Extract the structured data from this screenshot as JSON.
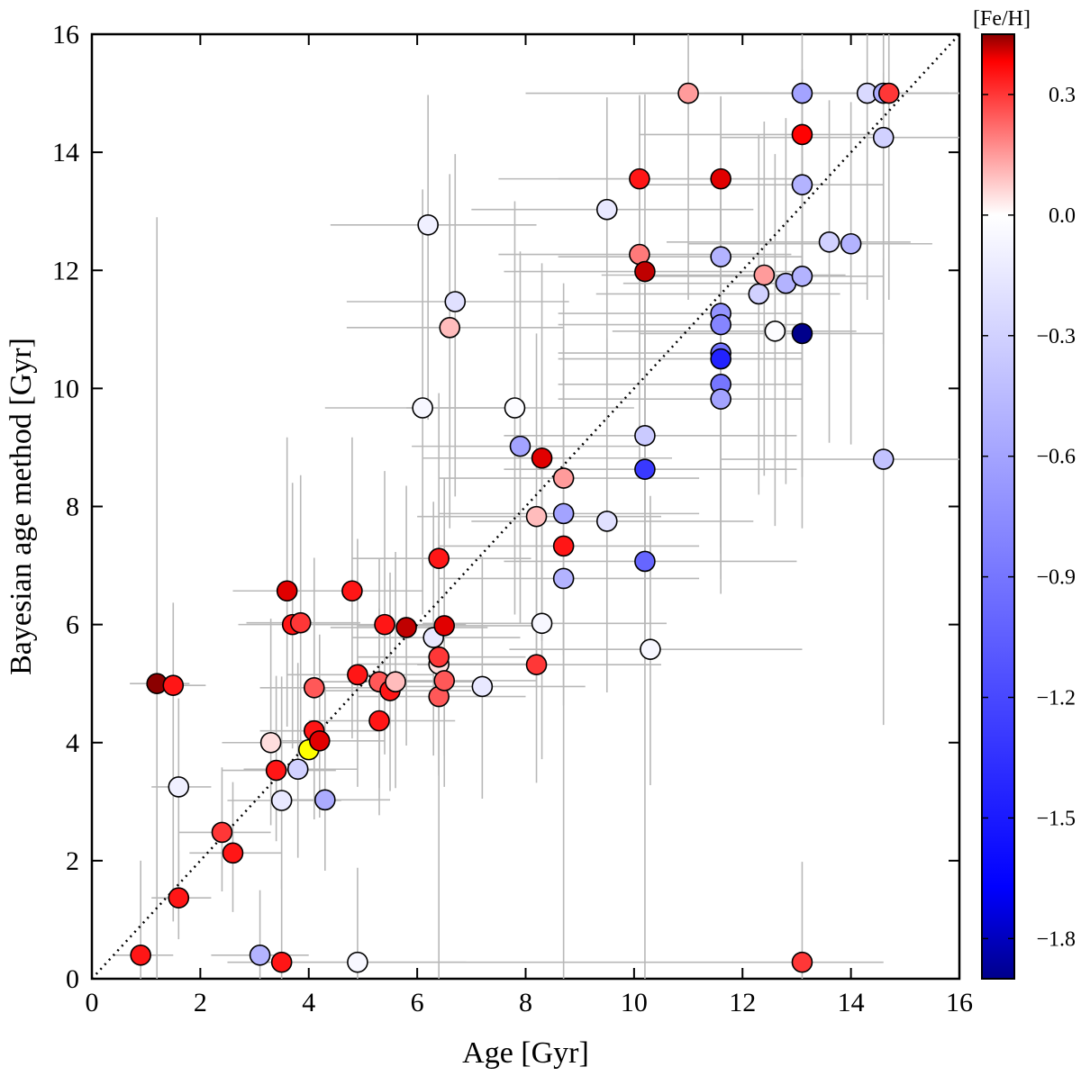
{
  "chart_data": {
    "type": "scatter",
    "title": "",
    "xlabel": "Age [Gyr]",
    "ylabel": "Bayesian age method [Gyr]",
    "xlim": [
      0,
      16
    ],
    "ylim": [
      0,
      16
    ],
    "xticks": [
      0,
      2,
      4,
      6,
      8,
      10,
      12,
      14,
      16
    ],
    "yticks": [
      0,
      2,
      4,
      6,
      8,
      10,
      12,
      14,
      16
    ],
    "reference_line": {
      "style": "dotted",
      "from": [
        0,
        0
      ],
      "to": [
        16,
        16
      ]
    },
    "colorbar": {
      "label": "[Fe/H]",
      "range": [
        -1.9,
        0.45
      ],
      "ticks": [
        0.3,
        0.0,
        -0.3,
        -0.6,
        -0.9,
        -1.2,
        -1.5,
        -1.8
      ],
      "tick_labels": [
        "0.3",
        "0.0",
        "−0.3",
        "−0.6",
        "−0.9",
        "−1.2",
        "−1.5",
        "−1.8"
      ],
      "colors": {
        "low": "#00008b",
        "mid_low": "#0000ff",
        "mid": "#ffffff",
        "mid_high": "#ff0000",
        "high": "#8b0000"
      }
    },
    "highlight_color": "#ffff00",
    "points": [
      {
        "x": 0.9,
        "y": 0.4,
        "feh": 0.35,
        "xerr": [
          0.5,
          0.6
        ],
        "yerr": [
          0.4,
          1.6
        ]
      },
      {
        "x": 1.2,
        "y": 5.0,
        "feh": 0.45,
        "xerr": [
          0.5,
          0.6
        ],
        "yerr": [
          5.0,
          7.9
        ]
      },
      {
        "x": 1.5,
        "y": 4.97,
        "feh": 0.35,
        "xerr": [
          0.5,
          0.6
        ],
        "yerr": [
          4.0,
          1.4
        ]
      },
      {
        "x": 1.6,
        "y": 3.25,
        "feh": -0.1,
        "xerr": [
          0.5,
          0.6
        ],
        "yerr": [
          1.8,
          1.5
        ]
      },
      {
        "x": 1.6,
        "y": 1.37,
        "feh": 0.35,
        "xerr": [
          0.5,
          0.6
        ],
        "yerr": [
          0.7,
          0.8
        ]
      },
      {
        "x": 2.4,
        "y": 2.48,
        "feh": 0.3,
        "xerr": [
          0.8,
          0.9
        ],
        "yerr": [
          1.0,
          1.1
        ]
      },
      {
        "x": 2.6,
        "y": 2.13,
        "feh": 0.35,
        "xerr": [
          0.8,
          0.9
        ],
        "yerr": [
          1.0,
          1.2
        ]
      },
      {
        "x": 3.1,
        "y": 0.4,
        "feh": -0.5,
        "xerr": [
          0.9,
          0.9
        ],
        "yerr": [
          0.4,
          1.1
        ]
      },
      {
        "x": 3.3,
        "y": 4.0,
        "feh": 0.05,
        "xerr": [
          0.9,
          1.0
        ],
        "yerr": [
          1.4,
          2.1
        ]
      },
      {
        "x": 3.4,
        "y": 3.53,
        "feh": 0.35,
        "xerr": [
          1.0,
          1.1
        ],
        "yerr": [
          1.2,
          1.6
        ]
      },
      {
        "x": 3.5,
        "y": 0.28,
        "feh": 0.35,
        "xerr": [
          1.0,
          1.5
        ],
        "yerr": [
          0.28,
          1.4
        ]
      },
      {
        "x": 3.5,
        "y": 3.02,
        "feh": -0.15,
        "xerr": [
          1.0,
          1.1
        ],
        "yerr": [
          1.5,
          2.1
        ]
      },
      {
        "x": 3.6,
        "y": 6.57,
        "feh": 0.4,
        "xerr": [
          1.0,
          1.1
        ],
        "yerr": [
          2.3,
          2.6
        ]
      },
      {
        "x": 3.7,
        "y": 6.0,
        "feh": 0.35,
        "xerr": [
          1.0,
          1.2
        ],
        "yerr": [
          2.1,
          2.4
        ]
      },
      {
        "x": 3.8,
        "y": 3.55,
        "feh": -0.3,
        "xerr": [
          1.0,
          1.1
        ],
        "yerr": [
          1.5,
          1.8
        ]
      },
      {
        "x": 3.85,
        "y": 6.03,
        "feh": 0.3,
        "xerr": [
          1.0,
          1.1
        ],
        "yerr": [
          2.2,
          2.5
        ]
      },
      {
        "x": 4.0,
        "y": 3.88,
        "feh": 0.0,
        "highlight": true,
        "xerr": [
          0,
          0
        ],
        "yerr": [
          0,
          0
        ]
      },
      {
        "x": 4.1,
        "y": 4.93,
        "feh": 0.25,
        "xerr": [
          1.0,
          1.2
        ],
        "yerr": [
          1.8,
          2.2
        ]
      },
      {
        "x": 4.1,
        "y": 4.2,
        "feh": 0.35,
        "xerr": [
          1.0,
          1.2
        ],
        "yerr": [
          1.5,
          1.9
        ]
      },
      {
        "x": 4.2,
        "y": 4.03,
        "feh": 0.4,
        "xerr": [
          1.0,
          1.2
        ],
        "yerr": [
          1.3,
          1.8
        ]
      },
      {
        "x": 4.3,
        "y": 3.03,
        "feh": -0.55,
        "xerr": [
          1.0,
          1.2
        ],
        "yerr": [
          1.2,
          1.9
        ]
      },
      {
        "x": 4.8,
        "y": 6.57,
        "feh": 0.35,
        "xerr": [
          1.2,
          1.3
        ],
        "yerr": [
          2.5,
          2.6
        ]
      },
      {
        "x": 4.9,
        "y": 0.28,
        "feh": -0.05,
        "xerr": [
          1.5,
          2.0
        ],
        "yerr": [
          0.28,
          1.6
        ]
      },
      {
        "x": 4.9,
        "y": 5.15,
        "feh": 0.35,
        "xerr": [
          1.3,
          1.4
        ],
        "yerr": [
          1.9,
          2.3
        ]
      },
      {
        "x": 5.3,
        "y": 5.03,
        "feh": 0.25,
        "xerr": [
          1.3,
          1.4
        ],
        "yerr": [
          1.8,
          2.1
        ]
      },
      {
        "x": 5.3,
        "y": 4.37,
        "feh": 0.35,
        "xerr": [
          1.3,
          1.4
        ],
        "yerr": [
          1.6,
          1.9
        ]
      },
      {
        "x": 5.4,
        "y": 6.0,
        "feh": 0.35,
        "xerr": [
          1.3,
          1.5
        ],
        "yerr": [
          2.2,
          2.6
        ]
      },
      {
        "x": 5.5,
        "y": 4.88,
        "feh": 0.35,
        "xerr": [
          1.3,
          1.5
        ],
        "yerr": [
          1.7,
          2.0
        ]
      },
      {
        "x": 5.6,
        "y": 5.03,
        "feh": 0.1,
        "xerr": [
          1.4,
          1.5
        ],
        "yerr": [
          1.8,
          2.2
        ]
      },
      {
        "x": 5.8,
        "y": 5.95,
        "feh": 0.42,
        "xerr": [
          1.4,
          1.5
        ],
        "yerr": [
          2.0,
          2.4
        ]
      },
      {
        "x": 6.1,
        "y": 9.67,
        "feh": -0.05,
        "xerr": [
          1.8,
          1.9
        ],
        "yerr": [
          3.5,
          3.7
        ]
      },
      {
        "x": 6.2,
        "y": 12.77,
        "feh": -0.1,
        "xerr": [
          1.8,
          2.0
        ],
        "yerr": [
          3.3,
          2.2
        ]
      },
      {
        "x": 6.3,
        "y": 5.78,
        "feh": -0.15,
        "xerr": [
          1.5,
          1.6
        ],
        "yerr": [
          2.0,
          2.3
        ]
      },
      {
        "x": 6.4,
        "y": 5.33,
        "feh": 0.05,
        "xerr": [
          1.5,
          1.6
        ],
        "yerr": [
          1.9,
          2.2
        ]
      },
      {
        "x": 6.4,
        "y": 7.12,
        "feh": 0.35,
        "xerr": [
          1.6,
          1.7
        ],
        "yerr": [
          2.7,
          2.8
        ]
      },
      {
        "x": 6.4,
        "y": 5.45,
        "feh": 0.3,
        "xerr": [
          1.5,
          1.6
        ],
        "yerr": [
          2.0,
          2.3
        ]
      },
      {
        "x": 6.4,
        "y": 4.78,
        "feh": 0.25,
        "xerr": [
          1.5,
          1.6
        ],
        "yerr": [
          4.78,
          1.9
        ]
      },
      {
        "x": 6.5,
        "y": 5.98,
        "feh": 0.4,
        "xerr": [
          1.6,
          1.7
        ],
        "yerr": [
          2.2,
          2.5
        ]
      },
      {
        "x": 6.5,
        "y": 5.05,
        "feh": 0.25,
        "xerr": [
          1.6,
          1.7
        ],
        "yerr": [
          1.8,
          2.1
        ]
      },
      {
        "x": 6.6,
        "y": 11.03,
        "feh": 0.1,
        "xerr": [
          1.9,
          2.1
        ],
        "yerr": [
          3.4,
          2.6
        ]
      },
      {
        "x": 6.7,
        "y": 11.47,
        "feh": -0.2,
        "xerr": [
          2.0,
          2.1
        ],
        "yerr": [
          3.3,
          2.5
        ]
      },
      {
        "x": 7.2,
        "y": 4.95,
        "feh": -0.15,
        "xerr": [
          1.8,
          1.9
        ],
        "yerr": [
          1.9,
          2.2
        ]
      },
      {
        "x": 7.8,
        "y": 9.67,
        "feh": -0.02,
        "xerr": [
          2.0,
          2.2
        ],
        "yerr": [
          3.5,
          3.5
        ]
      },
      {
        "x": 7.9,
        "y": 9.02,
        "feh": -0.6,
        "xerr": [
          2.0,
          2.2
        ],
        "yerr": [
          3.0,
          3.3
        ]
      },
      {
        "x": 8.2,
        "y": 7.83,
        "feh": 0.1,
        "xerr": [
          2.2,
          2.3
        ],
        "yerr": [
          2.9,
          3.1
        ]
      },
      {
        "x": 8.2,
        "y": 5.32,
        "feh": 0.3,
        "xerr": [
          2.2,
          2.3
        ],
        "yerr": [
          2.0,
          2.3
        ]
      },
      {
        "x": 8.3,
        "y": 8.82,
        "feh": 0.4,
        "xerr": [
          2.2,
          2.4
        ],
        "yerr": [
          3.1,
          3.3
        ]
      },
      {
        "x": 8.3,
        "y": 6.02,
        "feh": -0.05,
        "xerr": [
          2.2,
          2.3
        ],
        "yerr": [
          2.3,
          2.6
        ]
      },
      {
        "x": 8.7,
        "y": 8.48,
        "feh": 0.15,
        "xerr": [
          2.3,
          2.5
        ],
        "yerr": [
          3.0,
          3.3
        ]
      },
      {
        "x": 8.7,
        "y": 7.88,
        "feh": -0.6,
        "xerr": [
          2.3,
          2.5
        ],
        "yerr": [
          2.9,
          3.1
        ]
      },
      {
        "x": 8.7,
        "y": 7.33,
        "feh": 0.35,
        "xerr": [
          2.3,
          2.5
        ],
        "yerr": [
          2.7,
          3.0
        ]
      },
      {
        "x": 8.7,
        "y": 6.78,
        "feh": -0.5,
        "xerr": [
          2.3,
          2.5
        ],
        "yerr": [
          6.78,
          2.8
        ]
      },
      {
        "x": 9.5,
        "y": 13.03,
        "feh": -0.15,
        "xerr": [
          2.5,
          2.7
        ],
        "yerr": [
          3.3,
          1.9
        ]
      },
      {
        "x": 9.5,
        "y": 7.75,
        "feh": -0.2,
        "xerr": [
          2.5,
          2.7
        ],
        "yerr": [
          2.9,
          3.1
        ]
      },
      {
        "x": 10.1,
        "y": 13.55,
        "feh": 0.35,
        "xerr": [
          2.6,
          2.8
        ],
        "yerr": [
          3.3,
          1.4
        ]
      },
      {
        "x": 10.1,
        "y": 12.27,
        "feh": 0.2,
        "xerr": [
          2.6,
          2.8
        ],
        "yerr": [
          3.5,
          2.7
        ]
      },
      {
        "x": 10.2,
        "y": 11.98,
        "feh": 0.42,
        "xerr": [
          2.6,
          2.8
        ],
        "yerr": [
          3.4,
          3.0
        ]
      },
      {
        "x": 10.2,
        "y": 9.2,
        "feh": -0.35,
        "xerr": [
          2.6,
          2.8
        ],
        "yerr": [
          3.2,
          3.3
        ]
      },
      {
        "x": 10.2,
        "y": 8.63,
        "feh": -1.3,
        "xerr": [
          2.6,
          2.8
        ],
        "yerr": [
          3.0,
          3.2
        ]
      },
      {
        "x": 10.2,
        "y": 7.07,
        "feh": -1.0,
        "xerr": [
          2.6,
          2.8
        ],
        "yerr": [
          7.07,
          3.0
        ]
      },
      {
        "x": 10.3,
        "y": 5.58,
        "feh": -0.05,
        "xerr": [
          2.6,
          2.8
        ],
        "yerr": [
          2.3,
          2.6
        ]
      },
      {
        "x": 11.0,
        "y": 15.0,
        "feh": 0.15,
        "xerr": [
          3.0,
          1.5
        ],
        "yerr": [
          3.5,
          1.0
        ]
      },
      {
        "x": 11.6,
        "y": 13.55,
        "feh": 0.4,
        "xerr": [
          3.0,
          1.5
        ],
        "yerr": [
          3.5,
          1.4
        ]
      },
      {
        "x": 11.6,
        "y": 12.23,
        "feh": -0.5,
        "xerr": [
          3.0,
          1.5
        ],
        "yerr": [
          3.4,
          2.7
        ]
      },
      {
        "x": 11.6,
        "y": 11.27,
        "feh": -0.7,
        "xerr": [
          3.0,
          1.5
        ],
        "yerr": [
          3.3,
          3.0
        ]
      },
      {
        "x": 11.6,
        "y": 11.08,
        "feh": -0.8,
        "xerr": [
          3.0,
          1.5
        ],
        "yerr": [
          3.3,
          3.0
        ]
      },
      {
        "x": 11.6,
        "y": 10.6,
        "feh": -0.9,
        "xerr": [
          3.0,
          1.5
        ],
        "yerr": [
          3.3,
          3.0
        ]
      },
      {
        "x": 11.6,
        "y": 10.5,
        "feh": -1.45,
        "xerr": [
          3.0,
          1.5
        ],
        "yerr": [
          3.3,
          3.0
        ]
      },
      {
        "x": 11.6,
        "y": 10.07,
        "feh": -0.9,
        "xerr": [
          3.0,
          1.5
        ],
        "yerr": [
          3.3,
          3.1
        ]
      },
      {
        "x": 11.6,
        "y": 9.82,
        "feh": -0.6,
        "xerr": [
          3.0,
          1.5
        ],
        "yerr": [
          3.3,
          3.2
        ]
      },
      {
        "x": 12.3,
        "y": 11.6,
        "feh": -0.3,
        "xerr": [
          3.0,
          1.5
        ],
        "yerr": [
          3.4,
          2.7
        ]
      },
      {
        "x": 12.4,
        "y": 11.92,
        "feh": 0.15,
        "xerr": [
          3.0,
          1.5
        ],
        "yerr": [
          3.4,
          2.6
        ]
      },
      {
        "x": 12.6,
        "y": 10.97,
        "feh": -0.02,
        "xerr": [
          3.0,
          1.5
        ],
        "yerr": [
          3.3,
          3.0
        ]
      },
      {
        "x": 12.8,
        "y": 11.78,
        "feh": -0.5,
        "xerr": [
          3.0,
          1.5
        ],
        "yerr": [
          3.4,
          2.8
        ]
      },
      {
        "x": 13.1,
        "y": 15.0,
        "feh": -0.6,
        "xerr": [
          3.0,
          1.5
        ],
        "yerr": [
          3.5,
          1.0
        ]
      },
      {
        "x": 13.1,
        "y": 14.3,
        "feh": 0.38,
        "xerr": [
          3.0,
          1.5
        ],
        "yerr": [
          3.5,
          1.1
        ]
      },
      {
        "x": 13.1,
        "y": 13.45,
        "feh": -0.5,
        "xerr": [
          3.0,
          1.5
        ],
        "yerr": [
          3.4,
          1.5
        ]
      },
      {
        "x": 13.1,
        "y": 11.9,
        "feh": -0.5,
        "xerr": [
          3.0,
          1.5
        ],
        "yerr": [
          3.4,
          2.6
        ]
      },
      {
        "x": 13.1,
        "y": 10.93,
        "feh": -1.9,
        "xerr": [
          3.0,
          1.5
        ],
        "yerr": [
          3.3,
          3.0
        ]
      },
      {
        "x": 13.1,
        "y": 0.28,
        "feh": 0.3,
        "xerr": [
          8.2,
          1.5
        ],
        "yerr": [
          0.28,
          1.7
        ]
      },
      {
        "x": 13.6,
        "y": 12.48,
        "feh": -0.3,
        "xerr": [
          3.0,
          1.5
        ],
        "yerr": [
          3.4,
          2.4
        ]
      },
      {
        "x": 14.0,
        "y": 12.45,
        "feh": -0.5,
        "xerr": [
          3.0,
          1.5
        ],
        "yerr": [
          3.4,
          2.4
        ]
      },
      {
        "x": 14.3,
        "y": 15.0,
        "feh": -0.25,
        "xerr": [
          3.0,
          1.5
        ],
        "yerr": [
          3.5,
          1.0
        ]
      },
      {
        "x": 14.6,
        "y": 15.0,
        "feh": -0.55,
        "xerr": [
          3.0,
          1.5
        ],
        "yerr": [
          3.5,
          1.0
        ]
      },
      {
        "x": 14.6,
        "y": 14.25,
        "feh": -0.3,
        "xerr": [
          3.0,
          1.5
        ],
        "yerr": [
          3.5,
          1.1
        ]
      },
      {
        "x": 14.6,
        "y": 8.8,
        "feh": -0.4,
        "xerr": [
          3.0,
          1.5
        ],
        "yerr": [
          4.5,
          3.4
        ]
      },
      {
        "x": 14.7,
        "y": 15.0,
        "feh": 0.3,
        "xerr": [
          3.0,
          1.5
        ],
        "yerr": [
          3.5,
          1.0
        ]
      }
    ]
  }
}
